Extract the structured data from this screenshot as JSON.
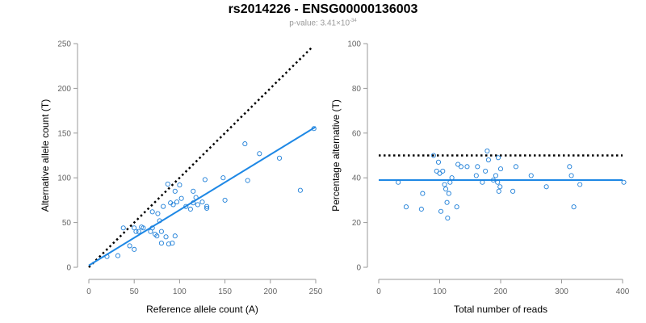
{
  "title": "rs2014226 - ENSG00000136003",
  "subtitle": {
    "prefix": "p-value: 3.41×10",
    "exponent": "-34"
  },
  "colors": {
    "points": "#1e7fd8",
    "fit_line": "#1e88e5",
    "reference_line": "#000000",
    "axis": "#999999",
    "tick_text": "#666666"
  },
  "chart_data": [
    {
      "type": "scatter",
      "title": "",
      "xlabel": "Reference allele count (A)",
      "ylabel": "Alternative allele count (T)",
      "xlim": [
        0,
        250
      ],
      "ylim": [
        0,
        250
      ],
      "xticks": [
        "0",
        "50",
        "100",
        "150",
        "200",
        "250"
      ],
      "yticks": [
        "0",
        "50",
        "100",
        "150",
        "200",
        "250"
      ],
      "reference_line": {
        "style": "dotted",
        "from": [
          0,
          0
        ],
        "to": [
          245,
          245
        ]
      },
      "fit_line": {
        "from": [
          0,
          2
        ],
        "to": [
          250,
          157
        ]
      },
      "points": [
        [
          20,
          12
        ],
        [
          32,
          13
        ],
        [
          38,
          44
        ],
        [
          45,
          24
        ],
        [
          50,
          20
        ],
        [
          50,
          44
        ],
        [
          52,
          40
        ],
        [
          55,
          40
        ],
        [
          58,
          45
        ],
        [
          60,
          44
        ],
        [
          68,
          40
        ],
        [
          70,
          44
        ],
        [
          70,
          62
        ],
        [
          73,
          37
        ],
        [
          75,
          35
        ],
        [
          76,
          60
        ],
        [
          78,
          52
        ],
        [
          80,
          40
        ],
        [
          80,
          27
        ],
        [
          82,
          68
        ],
        [
          85,
          34
        ],
        [
          87,
          93
        ],
        [
          88,
          26
        ],
        [
          90,
          72
        ],
        [
          92,
          27
        ],
        [
          93,
          70
        ],
        [
          95,
          35
        ],
        [
          95,
          85
        ],
        [
          97,
          73
        ],
        [
          100,
          92
        ],
        [
          102,
          77
        ],
        [
          107,
          68
        ],
        [
          112,
          65
        ],
        [
          115,
          85
        ],
        [
          115,
          72
        ],
        [
          118,
          78
        ],
        [
          120,
          70
        ],
        [
          125,
          73
        ],
        [
          128,
          98
        ],
        [
          130,
          66
        ],
        [
          130,
          68
        ],
        [
          148,
          100
        ],
        [
          150,
          75
        ],
        [
          172,
          138
        ],
        [
          175,
          97
        ],
        [
          188,
          127
        ],
        [
          210,
          122
        ],
        [
          233,
          86
        ],
        [
          248,
          155
        ]
      ]
    },
    {
      "type": "scatter",
      "title": "",
      "xlabel": "Total number of reads",
      "ylabel": "Percentage alternative (T)",
      "xlim": [
        0,
        400
      ],
      "ylim": [
        0,
        100
      ],
      "xticks": [
        "0",
        "100",
        "200",
        "300",
        "400"
      ],
      "yticks": [
        "0",
        "20",
        "40",
        "60",
        "80",
        "100"
      ],
      "reference_line": {
        "style": "dotted",
        "from": [
          0,
          50
        ],
        "to": [
          400,
          50
        ]
      },
      "fit_line": {
        "from": [
          0,
          39
        ],
        "to": [
          400,
          39
        ]
      },
      "points": [
        [
          32,
          38
        ],
        [
          45,
          27
        ],
        [
          70,
          26
        ],
        [
          72,
          33
        ],
        [
          90,
          50
        ],
        [
          95,
          43
        ],
        [
          98,
          47
        ],
        [
          100,
          42
        ],
        [
          102,
          25
        ],
        [
          105,
          43
        ],
        [
          108,
          37
        ],
        [
          110,
          35
        ],
        [
          112,
          29
        ],
        [
          113,
          22
        ],
        [
          115,
          33
        ],
        [
          117,
          38
        ],
        [
          120,
          40
        ],
        [
          128,
          27
        ],
        [
          130,
          46
        ],
        [
          135,
          45
        ],
        [
          145,
          45
        ],
        [
          160,
          41
        ],
        [
          162,
          45
        ],
        [
          170,
          38
        ],
        [
          175,
          43
        ],
        [
          178,
          52
        ],
        [
          180,
          48
        ],
        [
          188,
          39
        ],
        [
          192,
          41
        ],
        [
          195,
          38
        ],
        [
          196,
          49
        ],
        [
          197,
          34
        ],
        [
          199,
          36
        ],
        [
          200,
          44
        ],
        [
          220,
          34
        ],
        [
          225,
          45
        ],
        [
          250,
          41
        ],
        [
          275,
          36
        ],
        [
          313,
          45
        ],
        [
          316,
          41
        ],
        [
          320,
          27
        ],
        [
          330,
          37
        ],
        [
          402,
          38
        ]
      ]
    }
  ]
}
